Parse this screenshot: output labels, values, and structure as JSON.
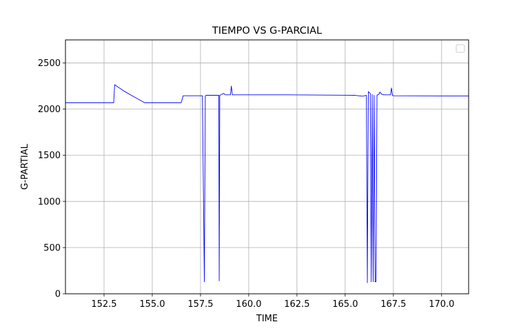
{
  "chart_data": {
    "type": "line",
    "title": "TIEMPO VS G-PARCIAL",
    "xlabel": "TIME",
    "ylabel": "G-PARTIAL",
    "xlim": [
      150.5,
      171.4
    ],
    "ylim": [
      0,
      2750
    ],
    "xticks": [
      152.5,
      155.0,
      157.5,
      160.0,
      162.5,
      165.0,
      167.5,
      170.0
    ],
    "xtick_labels": [
      "152.5",
      "155.0",
      "157.5",
      "160.0",
      "162.5",
      "165.0",
      "167.5",
      "170.0"
    ],
    "yticks": [
      0,
      500,
      1000,
      1500,
      2000,
      2500
    ],
    "ytick_labels": [
      "0",
      "500",
      "1000",
      "1500",
      "2000",
      "2500"
    ],
    "grid": true,
    "legend": "top-right",
    "series": [
      {
        "color": "#0000ff",
        "x": [
          150.5,
          153.0,
          153.05,
          153.5,
          154.0,
          154.6,
          156.5,
          156.6,
          157.6,
          157.7,
          157.75,
          157.8,
          158.45,
          158.47,
          158.5,
          158.7,
          158.8,
          159.05,
          159.1,
          159.15,
          159.4,
          162.0,
          165.5,
          165.9,
          166.1,
          166.15,
          166.2,
          166.3,
          166.35,
          166.4,
          166.45,
          166.5,
          166.55,
          166.6,
          166.65,
          166.7,
          166.75,
          166.8,
          166.9,
          166.95,
          167.0,
          167.35,
          167.4,
          167.45,
          167.5,
          171.4
        ],
        "y": [
          2070,
          2070,
          2265,
          2200,
          2140,
          2070,
          2070,
          2145,
          2145,
          130,
          2145,
          2150,
          2150,
          140,
          2150,
          2170,
          2155,
          2155,
          2250,
          2155,
          2155,
          2155,
          2150,
          2140,
          2150,
          120,
          2190,
          2170,
          130,
          2160,
          130,
          2150,
          130,
          130,
          2150,
          2160,
          2160,
          2185,
          2160,
          2160,
          2155,
          2155,
          2230,
          2150,
          2145,
          2142
        ]
      }
    ]
  }
}
